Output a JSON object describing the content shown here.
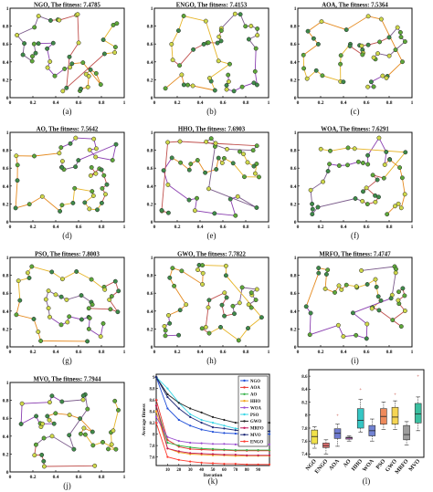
{
  "chart_data": [
    {
      "type": "scatter",
      "panel": "(a)",
      "title": "NGO, The fitness: 7.4785",
      "xticks": [
        "0",
        "0.2",
        "0.4",
        "0.6",
        "0.8",
        "1"
      ],
      "yticks": [
        "0",
        "0.2",
        "0.4",
        "0.6",
        "0.8",
        "1"
      ],
      "xlim": [
        0,
        1
      ],
      "ylim": [
        0,
        1
      ]
    },
    {
      "type": "scatter",
      "panel": "(b)",
      "title": "ENGO, The fitness: 7.4153",
      "xticks": [
        "0",
        "0.2",
        "0.4",
        "0.6",
        "0.8",
        "1"
      ],
      "yticks": [
        "0",
        "0.2",
        "0.4",
        "0.6",
        "0.8",
        "1"
      ],
      "xlim": [
        0,
        1
      ],
      "ylim": [
        0,
        1
      ]
    },
    {
      "type": "scatter",
      "panel": "(c)",
      "title": "AOA, The fitness: 7.5364",
      "xticks": [
        "0",
        "0.2",
        "0.4",
        "0.6",
        "0.8",
        "1"
      ],
      "yticks": [
        "0",
        "0.2",
        "0.4",
        "0.6",
        "0.8",
        "1"
      ],
      "xlim": [
        0,
        1
      ],
      "ylim": [
        0,
        1
      ]
    },
    {
      "type": "scatter",
      "panel": "(d)",
      "title": "AO, The fitness: 7.5642",
      "xticks": [
        "0",
        "0.2",
        "0.4",
        "0.6",
        "0.8",
        "1"
      ],
      "yticks": [
        "0",
        "0.2",
        "0.4",
        "0.6",
        "0.8",
        "1"
      ],
      "xlim": [
        0,
        1
      ],
      "ylim": [
        0,
        1
      ]
    },
    {
      "type": "scatter",
      "panel": "(e)",
      "title": "HHO, The fitness: 7.6903",
      "xticks": [
        "0",
        "0.2",
        "0.4",
        "0.6",
        "0.8",
        "1"
      ],
      "yticks": [
        "0",
        "0.2",
        "0.4",
        "0.6",
        "0.8",
        "1"
      ],
      "xlim": [
        0,
        1
      ],
      "ylim": [
        0,
        1
      ]
    },
    {
      "type": "scatter",
      "panel": "(f)",
      "title": "WOA, The fitness: 7.6291",
      "xticks": [
        "0",
        "0.2",
        "0.4",
        "0.6",
        "0.8",
        "1"
      ],
      "yticks": [
        "0",
        "0.2",
        "0.4",
        "0.6",
        "0.8",
        "1"
      ],
      "xlim": [
        0,
        1
      ],
      "ylim": [
        0,
        1
      ]
    },
    {
      "type": "scatter",
      "panel": "(g)",
      "title": "PSO, The fitness: 7.8003",
      "xticks": [
        "0",
        "0.2",
        "0.4",
        "0.6",
        "0.8",
        "1"
      ],
      "yticks": [
        "0",
        "0.2",
        "0.4",
        "0.6",
        "0.8",
        "1"
      ],
      "xlim": [
        0,
        1
      ],
      "ylim": [
        0,
        1
      ]
    },
    {
      "type": "scatter",
      "panel": "(h)",
      "title": "GWO, The fitness: 7.7822",
      "xticks": [
        "0",
        "0.2",
        "0.4",
        "0.6",
        "0.8",
        "1"
      ],
      "yticks": [
        "0",
        "0.2",
        "0.4",
        "0.6",
        "0.8",
        "1"
      ],
      "xlim": [
        0,
        1
      ],
      "ylim": [
        0,
        1
      ]
    },
    {
      "type": "scatter",
      "panel": "(i)",
      "title": "MRFO, The fitness: 7.4747",
      "xticks": [
        "0",
        "0.2",
        "0.4",
        "0.6",
        "0.8",
        "1"
      ],
      "yticks": [
        "0",
        "0.2",
        "0.4",
        "0.6",
        "0.8",
        "1"
      ],
      "xlim": [
        0,
        1
      ],
      "ylim": [
        0,
        1
      ]
    },
    {
      "type": "scatter",
      "panel": "(j)",
      "title": "MVO, The fitness: 7.7944",
      "xticks": [
        "0",
        "0.2",
        "0.4",
        "0.6",
        "0.8",
        "1"
      ],
      "yticks": [
        "0",
        "0.2",
        "0.4",
        "0.6",
        "0.8",
        "1"
      ],
      "xlim": [
        0,
        1
      ],
      "ylim": [
        0,
        1
      ]
    },
    {
      "type": "line",
      "panel": "(k)",
      "xlabel": "Iteration",
      "ylabel": "Average fitness",
      "xticks": [
        "10",
        "20",
        "30",
        "40",
        "50",
        "60",
        "70",
        "80",
        "90"
      ],
      "yticks": [
        "7.6",
        "7.8",
        "8",
        "8.2",
        "8.4",
        "8.6",
        "8.8",
        "9"
      ],
      "xlim": [
        0,
        100
      ],
      "ylim": [
        7.45,
        9.05
      ],
      "x": [
        0,
        10,
        20,
        30,
        40,
        50,
        60,
        70,
        80,
        90,
        100
      ],
      "legend": "top-right",
      "series": [
        {
          "name": "NGO",
          "color": "#1f4fd8",
          "values": [
            9.0,
            8.45,
            8.25,
            8.15,
            8.08,
            8.04,
            8.02,
            8.01,
            8.0,
            8.0,
            8.0
          ]
        },
        {
          "name": "AOA",
          "color": "#e8332d",
          "values": [
            8.6,
            7.9,
            7.78,
            7.74,
            7.73,
            7.72,
            7.72,
            7.71,
            7.71,
            7.71,
            7.71
          ]
        },
        {
          "name": "AO",
          "color": "#36b24a",
          "values": [
            8.5,
            7.85,
            7.8,
            7.77,
            7.75,
            7.74,
            7.73,
            7.72,
            7.72,
            7.72,
            7.72
          ]
        },
        {
          "name": "HHO",
          "color": "#f2a31b",
          "values": [
            8.4,
            7.75,
            7.68,
            7.65,
            7.64,
            7.63,
            7.63,
            7.62,
            7.62,
            7.62,
            7.62
          ]
        },
        {
          "name": "WOA",
          "color": "#9b4fd0",
          "values": [
            8.3,
            7.95,
            7.88,
            7.85,
            7.84,
            7.83,
            7.83,
            7.82,
            7.82,
            7.82,
            7.82
          ]
        },
        {
          "name": "PSO",
          "color": "#39d7e6",
          "values": [
            9.0,
            8.8,
            8.55,
            8.35,
            8.25,
            8.2,
            8.15,
            8.1,
            8.08,
            8.06,
            8.05
          ]
        },
        {
          "name": "GWO",
          "color": "#222222",
          "values": [
            9.0,
            8.7,
            8.55,
            8.45,
            8.38,
            8.3,
            8.25,
            8.2,
            8.2,
            8.2,
            8.2
          ]
        },
        {
          "name": "MRFO",
          "color": "#c2185b",
          "values": [
            8.5,
            7.75,
            7.7,
            7.67,
            7.66,
            7.65,
            7.64,
            7.64,
            7.63,
            7.63,
            7.63
          ]
        },
        {
          "name": "MVO",
          "color": "#1e2a78",
          "values": [
            9.0,
            8.65,
            8.45,
            8.3,
            8.2,
            8.12,
            8.1,
            8.07,
            8.05,
            8.05,
            8.05
          ]
        },
        {
          "name": "ENGO",
          "color": "#ff3b2f",
          "values": [
            8.2,
            7.6,
            7.55,
            7.52,
            7.5,
            7.49,
            7.48,
            7.48,
            7.47,
            7.47,
            7.47
          ]
        }
      ]
    },
    {
      "type": "box",
      "panel": "(l)",
      "categories": [
        "NGO",
        "ENGO",
        "AOA",
        "AO",
        "HHO",
        "WOA",
        "PSO",
        "GWO",
        "MRFO",
        "MVO"
      ],
      "yticks": [
        "7.4",
        "7.6",
        "7.8",
        "8",
        "8.2",
        "8.4",
        "8.6"
      ],
      "ylim": [
        7.35,
        8.7
      ],
      "boxes": [
        {
          "name": "NGO",
          "color": "#f1e24a",
          "whisker_low": 7.49,
          "q1": 7.56,
          "median": 7.67,
          "q3": 7.77,
          "whisker_high": 7.82
        },
        {
          "name": "ENGO",
          "color": "#e57373",
          "whisker_low": 7.4,
          "q1": 7.5,
          "median": 7.53,
          "q3": 7.57,
          "whisker_high": 7.62
        },
        {
          "name": "AOA",
          "color": "#6f7bd1",
          "whisker_low": 7.52,
          "q1": 7.64,
          "median": 7.72,
          "q3": 7.79,
          "whisker_high": 7.86
        },
        {
          "name": "AO",
          "color": "#c66cc9",
          "whisker_low": 7.6,
          "q1": 7.63,
          "median": 7.65,
          "q3": 7.66,
          "whisker_high": 7.68
        },
        {
          "name": "HHO",
          "color": "#35c6c4",
          "whisker_low": 7.74,
          "q1": 7.8,
          "median": 7.92,
          "q3": 8.1,
          "whisker_high": 8.24
        },
        {
          "name": "WOA",
          "color": "#7283d3",
          "whisker_low": 7.6,
          "q1": 7.68,
          "median": 7.76,
          "q3": 7.84,
          "whisker_high": 7.94
        },
        {
          "name": "PSO",
          "color": "#ee8a5c",
          "whisker_low": 7.78,
          "q1": 7.86,
          "median": 7.98,
          "q3": 8.1,
          "whisker_high": 8.2
        },
        {
          "name": "GWO",
          "color": "#f6d553",
          "whisker_low": 7.78,
          "q1": 7.86,
          "median": 7.97,
          "q3": 8.12,
          "whisker_high": 8.22
        },
        {
          "name": "MRFO",
          "color": "#9c9c9c",
          "whisker_low": 7.54,
          "q1": 7.62,
          "median": 7.7,
          "q3": 7.84,
          "whisker_high": 7.9
        },
        {
          "name": "MVO",
          "color": "#3bbfa0",
          "whisker_low": 7.76,
          "q1": 7.88,
          "median": 8.02,
          "q3": 8.18,
          "whisker_high": 8.28
        }
      ],
      "outliers": [
        {
          "box": "AOA",
          "value": 8.0
        },
        {
          "box": "HHO",
          "value": 8.4
        },
        {
          "box": "GWO",
          "value": 8.32
        },
        {
          "box": "MVO",
          "value": 8.6
        }
      ]
    }
  ]
}
